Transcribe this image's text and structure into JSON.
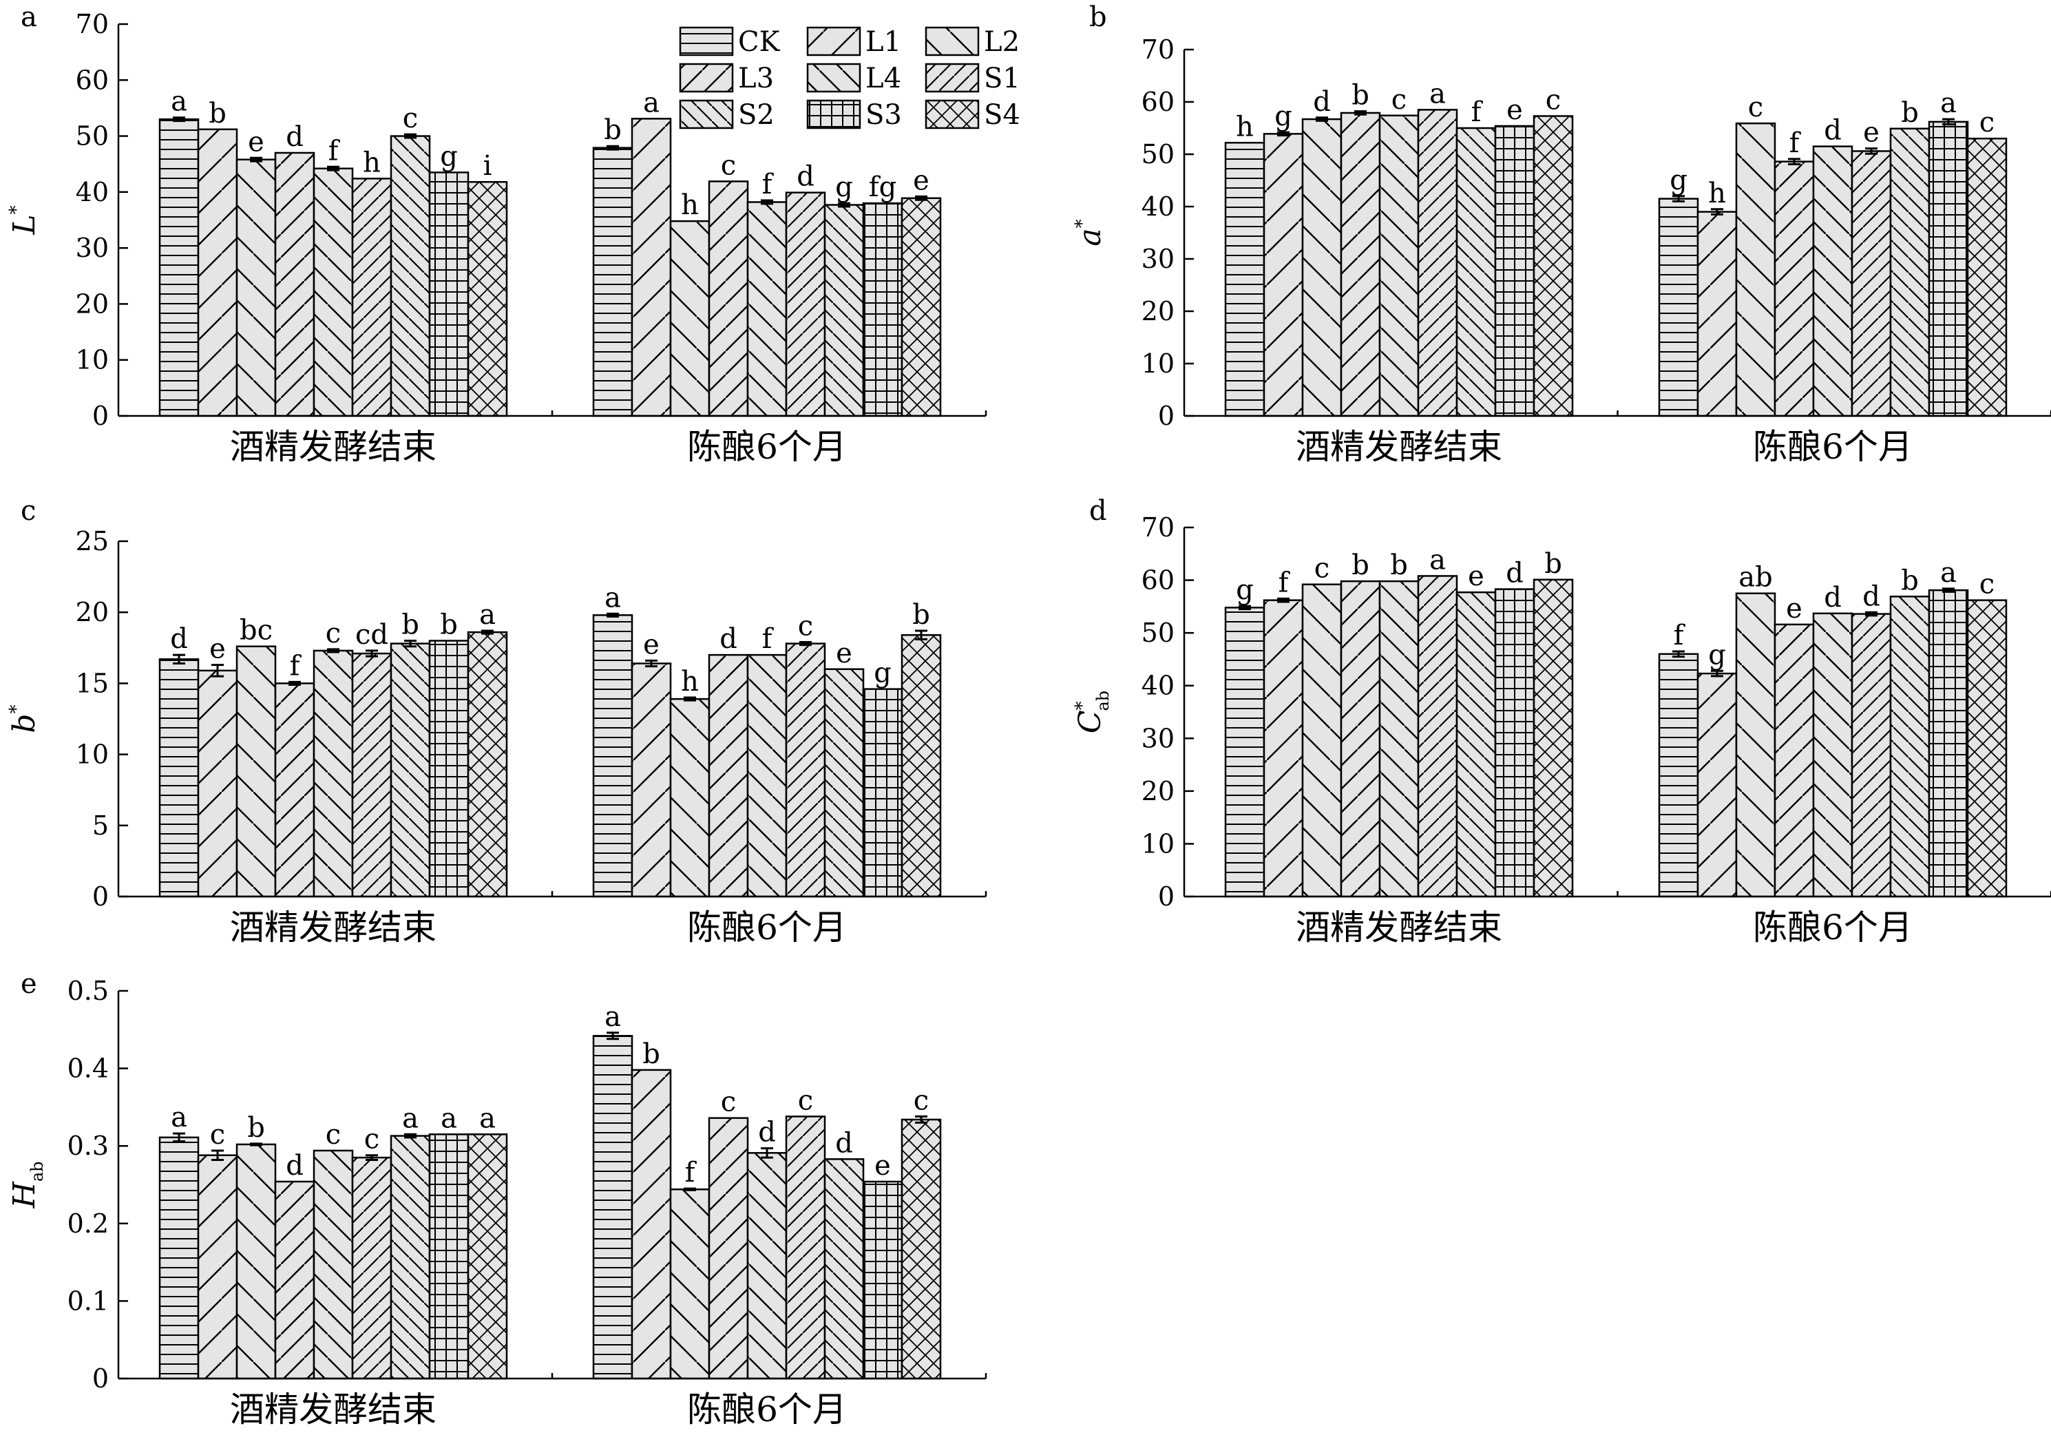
{
  "figure": {
    "categories": [
      "酒精发酵结束",
      "陈酿6个月"
    ],
    "legend": [
      "CK",
      "L1",
      "L2",
      "L3",
      "L4",
      "S1",
      "S2",
      "S3",
      "S4"
    ]
  },
  "chart_data": [
    {
      "type": "bar",
      "panel": "a",
      "ylabel": "L",
      "ylabel_sup": "*",
      "ylabel_sub": "",
      "ylim": [
        0,
        70
      ],
      "yticks": [
        0,
        10,
        20,
        30,
        40,
        50,
        60,
        70
      ],
      "ytick_labels": [
        "0",
        "10",
        "20",
        "30",
        "40",
        "50",
        "60",
        "70"
      ],
      "categories": [
        "酒精发酵结束",
        "陈酿6个月"
      ],
      "legend_shown": true,
      "series": [
        {
          "name": "CK",
          "values": [
            53.0,
            47.9
          ],
          "errors": [
            0.3,
            0.3
          ],
          "labels": [
            "a",
            "b"
          ]
        },
        {
          "name": "L1",
          "values": [
            51.2,
            53.1
          ],
          "errors": [
            0,
            0
          ],
          "labels": [
            "b",
            "a"
          ]
        },
        {
          "name": "L2",
          "values": [
            45.8,
            34.8
          ],
          "errors": [
            0.3,
            0
          ],
          "labels": [
            "e",
            "h"
          ]
        },
        {
          "name": "L3",
          "values": [
            47.0,
            41.9
          ],
          "errors": [
            0,
            0
          ],
          "labels": [
            "d",
            "c"
          ]
        },
        {
          "name": "L4",
          "values": [
            44.2,
            38.2
          ],
          "errors": [
            0.3,
            0.3
          ],
          "labels": [
            "f",
            "f"
          ]
        },
        {
          "name": "S1",
          "values": [
            42.4,
            39.9
          ],
          "errors": [
            0,
            0
          ],
          "labels": [
            "h",
            "d"
          ]
        },
        {
          "name": "S2",
          "values": [
            50.0,
            37.7
          ],
          "errors": [
            0.3,
            0.3
          ],
          "labels": [
            "c",
            "g"
          ]
        },
        {
          "name": "S3",
          "values": [
            43.5,
            38.0
          ],
          "errors": [
            0,
            0
          ],
          "labels": [
            "g",
            "fg"
          ]
        },
        {
          "name": "S4",
          "values": [
            41.8,
            38.9
          ],
          "errors": [
            0,
            0.3
          ],
          "labels": [
            "i",
            "e"
          ]
        }
      ]
    },
    {
      "type": "bar",
      "panel": "b",
      "ylabel": "a",
      "ylabel_sup": "*",
      "ylabel_sub": "",
      "ylim": [
        0,
        70
      ],
      "yticks": [
        0,
        10,
        20,
        30,
        40,
        50,
        60,
        70
      ],
      "ytick_labels": [
        "0",
        "10",
        "20",
        "30",
        "40",
        "50",
        "60",
        "70"
      ],
      "categories": [
        "酒精发酵结束",
        "陈酿6个月"
      ],
      "legend_shown": false,
      "series": [
        {
          "name": "CK",
          "values": [
            52.2,
            41.5
          ],
          "errors": [
            0,
            0.5
          ],
          "labels": [
            "h",
            "g"
          ]
        },
        {
          "name": "L1",
          "values": [
            53.9,
            39.0
          ],
          "errors": [
            0.3,
            0.5
          ],
          "labels": [
            "g",
            "h"
          ]
        },
        {
          "name": "L2",
          "values": [
            56.7,
            55.9
          ],
          "errors": [
            0.3,
            0
          ],
          "labels": [
            "d",
            "c"
          ]
        },
        {
          "name": "L3",
          "values": [
            57.9,
            48.6
          ],
          "errors": [
            0.3,
            0.5
          ],
          "labels": [
            "b",
            "f"
          ]
        },
        {
          "name": "L4",
          "values": [
            57.4,
            51.5
          ],
          "errors": [
            0,
            0
          ],
          "labels": [
            "c",
            "d"
          ]
        },
        {
          "name": "S1",
          "values": [
            58.5,
            50.6
          ],
          "errors": [
            0,
            0.5
          ],
          "labels": [
            "a",
            "e"
          ]
        },
        {
          "name": "S2",
          "values": [
            55.0,
            54.9
          ],
          "errors": [
            0,
            0
          ],
          "labels": [
            "f",
            "b"
          ]
        },
        {
          "name": "S3",
          "values": [
            55.4,
            56.2
          ],
          "errors": [
            0,
            0.5
          ],
          "labels": [
            "e",
            "a"
          ]
        },
        {
          "name": "S4",
          "values": [
            57.3,
            53.0
          ],
          "errors": [
            0,
            0
          ],
          "labels": [
            "c",
            "c"
          ]
        }
      ]
    },
    {
      "type": "bar",
      "panel": "c",
      "ylabel": "b",
      "ylabel_sup": "*",
      "ylabel_sub": "",
      "ylim": [
        0,
        25
      ],
      "yticks": [
        0,
        5,
        10,
        15,
        20,
        25
      ],
      "ytick_labels": [
        "0",
        "5",
        "10",
        "15",
        "20",
        "25"
      ],
      "categories": [
        "酒精发酵结束",
        "陈酿6个月"
      ],
      "legend_shown": false,
      "series": [
        {
          "name": "CK",
          "values": [
            16.7,
            19.8
          ],
          "errors": [
            0.3,
            0.1
          ],
          "labels": [
            "d",
            "a"
          ]
        },
        {
          "name": "L1",
          "values": [
            15.9,
            16.4
          ],
          "errors": [
            0.4,
            0.2
          ],
          "labels": [
            "e",
            "e"
          ]
        },
        {
          "name": "L2",
          "values": [
            17.6,
            13.9
          ],
          "errors": [
            0,
            0.1
          ],
          "labels": [
            "bc",
            "h"
          ]
        },
        {
          "name": "L3",
          "values": [
            15.0,
            17.0
          ],
          "errors": [
            0.1,
            0
          ],
          "labels": [
            "f",
            "d"
          ]
        },
        {
          "name": "L4",
          "values": [
            17.3,
            17.0
          ],
          "errors": [
            0.1,
            0
          ],
          "labels": [
            "c",
            "f"
          ]
        },
        {
          "name": "S1",
          "values": [
            17.1,
            17.8
          ],
          "errors": [
            0.2,
            0.1
          ],
          "labels": [
            "cd",
            "c"
          ]
        },
        {
          "name": "S2",
          "values": [
            17.8,
            16.0
          ],
          "errors": [
            0.2,
            0
          ],
          "labels": [
            "b",
            "e"
          ]
        },
        {
          "name": "S3",
          "values": [
            18.0,
            14.6
          ],
          "errors": [
            0,
            0
          ],
          "labels": [
            "b",
            "g"
          ]
        },
        {
          "name": "S4",
          "values": [
            18.6,
            18.4
          ],
          "errors": [
            0.1,
            0.3
          ],
          "labels": [
            "a",
            "b"
          ]
        }
      ]
    },
    {
      "type": "bar",
      "panel": "d",
      "ylabel": "C",
      "ylabel_sup": "*",
      "ylabel_sub": "ab",
      "ylim": [
        0,
        70
      ],
      "yticks": [
        0,
        10,
        20,
        30,
        40,
        50,
        60,
        70
      ],
      "ytick_labels": [
        "0",
        "10",
        "20",
        "30",
        "40",
        "50",
        "60",
        "70"
      ],
      "categories": [
        "酒精发酵结束",
        "陈酿6个月"
      ],
      "legend_shown": false,
      "series": [
        {
          "name": "CK",
          "values": [
            54.8,
            46.0
          ],
          "errors": [
            0.3,
            0.5
          ],
          "labels": [
            "g",
            "f"
          ]
        },
        {
          "name": "L1",
          "values": [
            56.2,
            42.3
          ],
          "errors": [
            0.3,
            0.5
          ],
          "labels": [
            "f",
            "g"
          ]
        },
        {
          "name": "L2",
          "values": [
            59.2,
            57.5
          ],
          "errors": [
            0,
            0
          ],
          "labels": [
            "c",
            "ab"
          ]
        },
        {
          "name": "L3",
          "values": [
            59.8,
            51.6
          ],
          "errors": [
            0,
            0
          ],
          "labels": [
            "b",
            "e"
          ]
        },
        {
          "name": "L4",
          "values": [
            59.8,
            53.7
          ],
          "errors": [
            0,
            0
          ],
          "labels": [
            "b",
            "d"
          ]
        },
        {
          "name": "S1",
          "values": [
            60.8,
            53.6
          ],
          "errors": [
            0,
            0.3
          ],
          "labels": [
            "a",
            "d"
          ]
        },
        {
          "name": "S2",
          "values": [
            57.7,
            56.9
          ],
          "errors": [
            0,
            0
          ],
          "labels": [
            "e",
            "b"
          ]
        },
        {
          "name": "S3",
          "values": [
            58.3,
            58.1
          ],
          "errors": [
            0,
            0.3
          ],
          "labels": [
            "d",
            "a"
          ]
        },
        {
          "name": "S4",
          "values": [
            60.1,
            56.2
          ],
          "errors": [
            0,
            0
          ],
          "labels": [
            "b",
            "c"
          ]
        }
      ]
    },
    {
      "type": "bar",
      "panel": "e",
      "ylabel": "H",
      "ylabel_sup": "",
      "ylabel_sub": "ab",
      "ylim": [
        0,
        0.5
      ],
      "yticks": [
        0,
        0.1,
        0.2,
        0.3,
        0.4,
        0.5
      ],
      "ytick_labels": [
        "0",
        "0.1",
        "0.2",
        "0.3",
        "0.4",
        "0.5"
      ],
      "categories": [
        "酒精发酵结束",
        "陈酿6个月"
      ],
      "legend_shown": false,
      "series": [
        {
          "name": "CK",
          "values": [
            0.311,
            0.442
          ],
          "errors": [
            0.005,
            0.004
          ],
          "labels": [
            "a",
            "a"
          ]
        },
        {
          "name": "L1",
          "values": [
            0.288,
            0.398
          ],
          "errors": [
            0.006,
            0
          ],
          "labels": [
            "c",
            "b"
          ]
        },
        {
          "name": "L2",
          "values": [
            0.302,
            0.244
          ],
          "errors": [
            0.001,
            0.001
          ],
          "labels": [
            "b",
            "f"
          ]
        },
        {
          "name": "L3",
          "values": [
            0.254,
            0.336
          ],
          "errors": [
            0,
            0
          ],
          "labels": [
            "d",
            "c"
          ]
        },
        {
          "name": "L4",
          "values": [
            0.294,
            0.291
          ],
          "errors": [
            0,
            0.006
          ],
          "labels": [
            "c",
            "d"
          ]
        },
        {
          "name": "S1",
          "values": [
            0.285,
            0.338
          ],
          "errors": [
            0.003,
            0
          ],
          "labels": [
            "c",
            "c"
          ]
        },
        {
          "name": "S2",
          "values": [
            0.313,
            0.283
          ],
          "errors": [
            0.002,
            0
          ],
          "labels": [
            "a",
            "d"
          ]
        },
        {
          "name": "S3",
          "values": [
            0.315,
            0.254
          ],
          "errors": [
            0,
            0
          ],
          "labels": [
            "a",
            "e"
          ]
        },
        {
          "name": "S4",
          "values": [
            0.315,
            0.334
          ],
          "errors": [
            0,
            0.004
          ],
          "labels": [
            "a",
            "c"
          ]
        }
      ]
    }
  ]
}
